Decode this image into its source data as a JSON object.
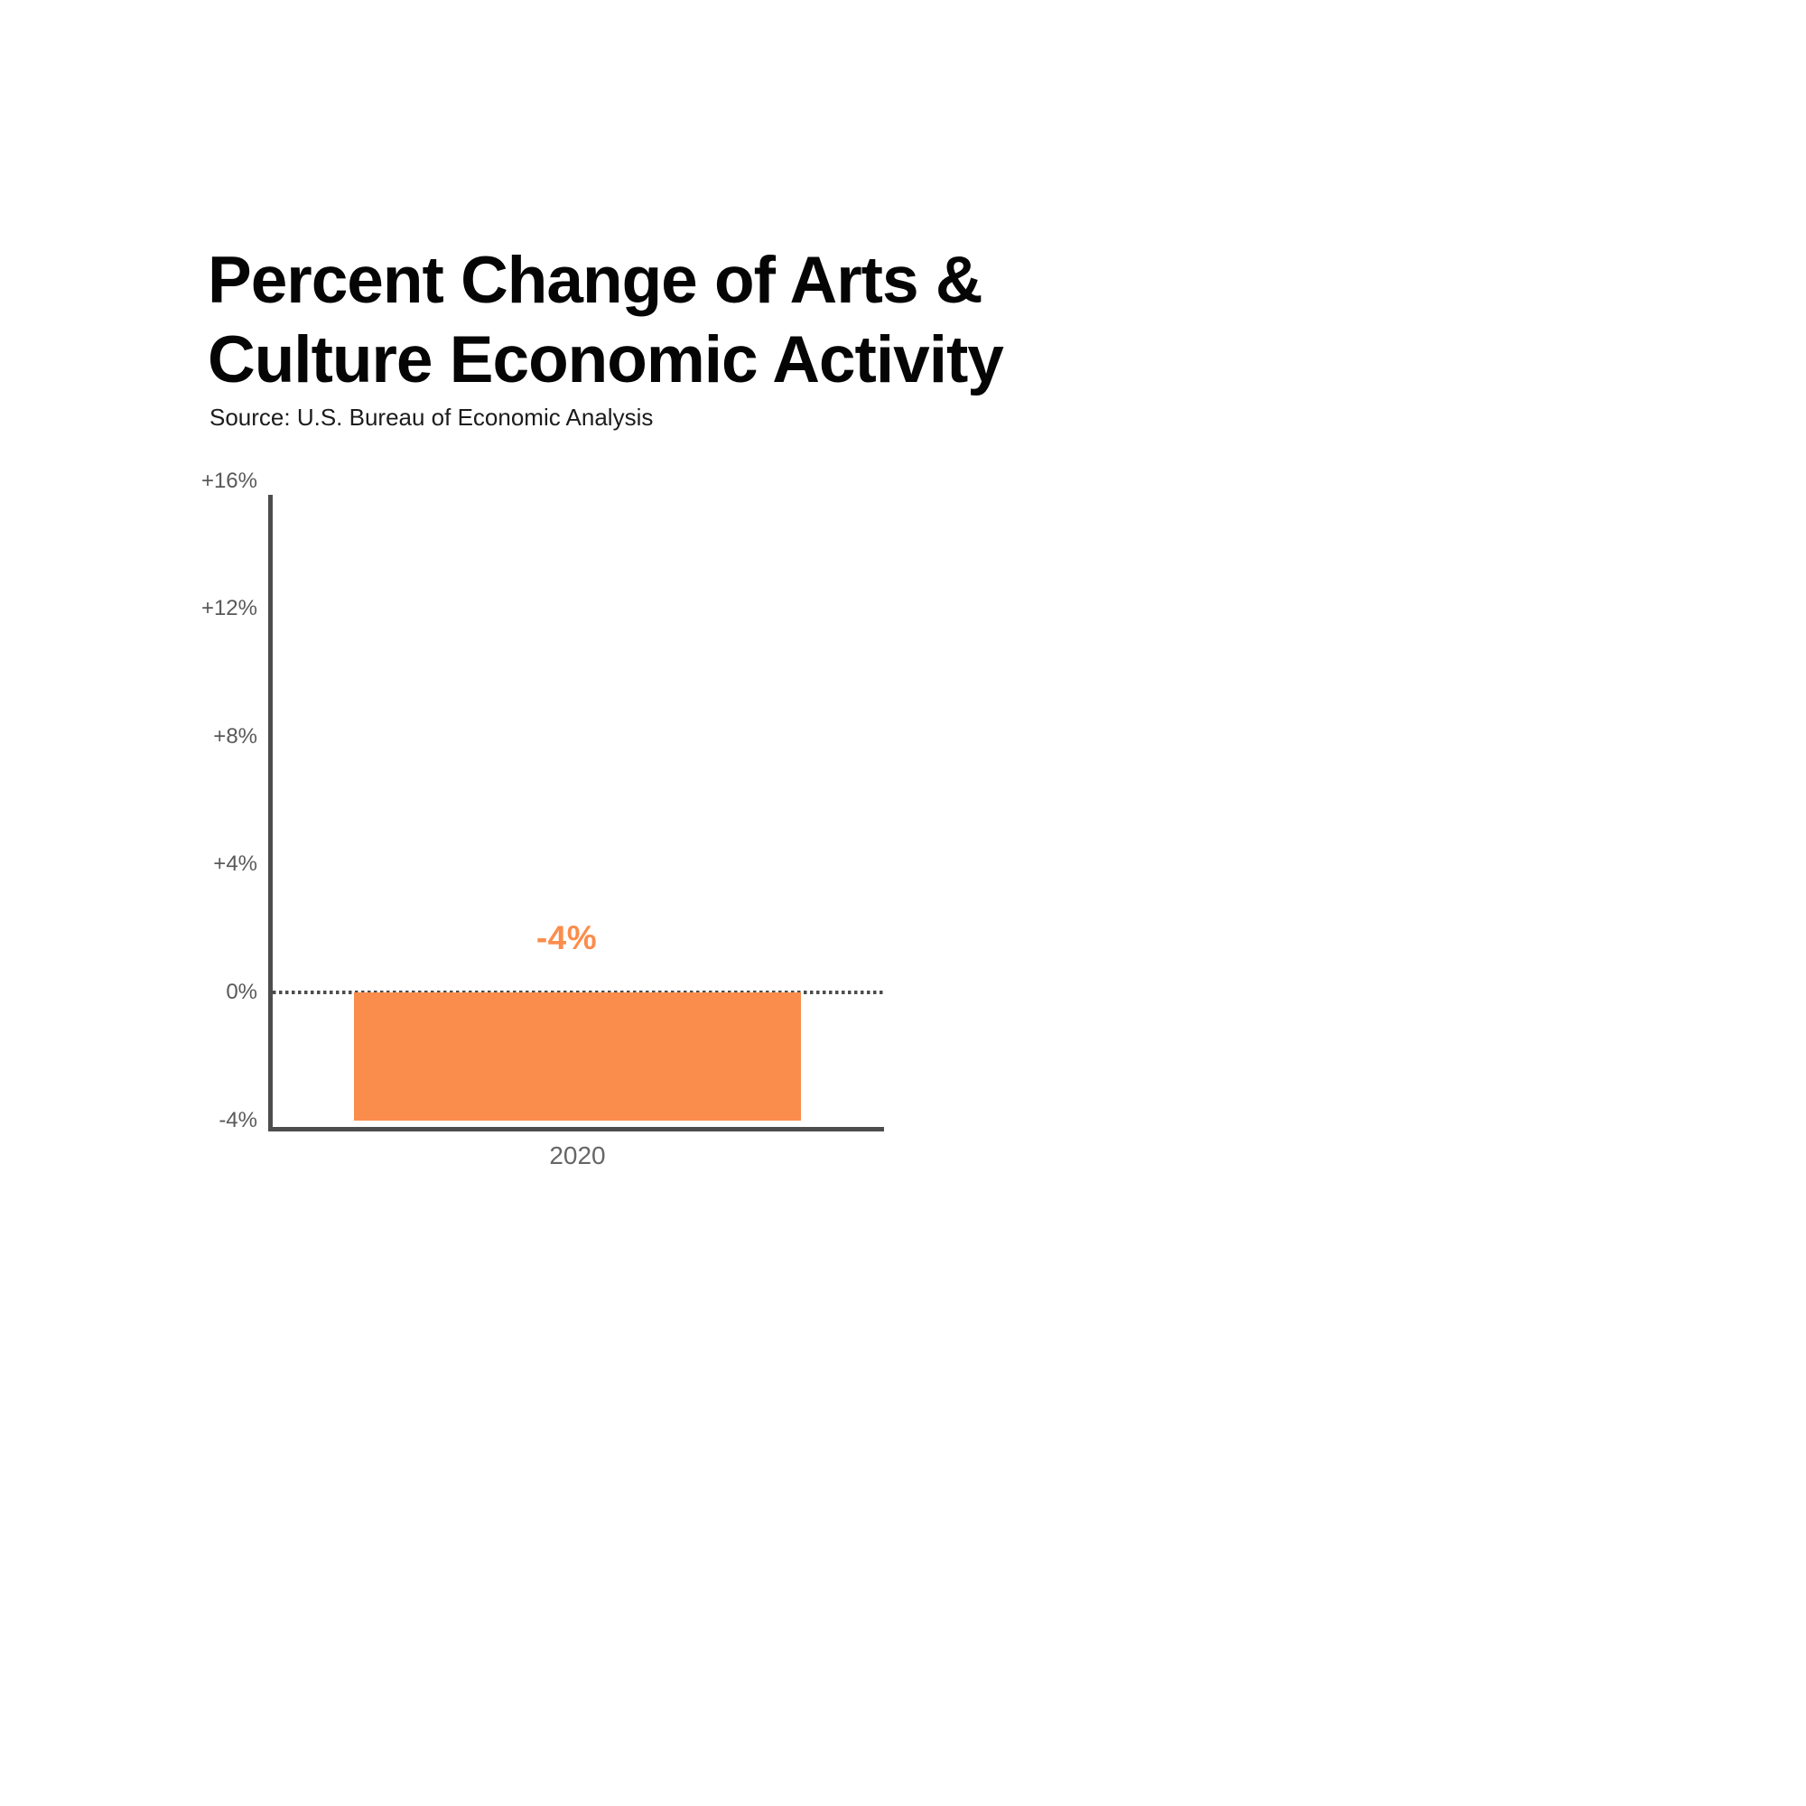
{
  "header": {
    "title_line1": "Percent Change of Arts &",
    "title_line2": "Culture Economic Activity",
    "source": "Source: U.S. Bureau of Economic Analysis"
  },
  "chart_data": {
    "type": "bar",
    "title": "Percent Change of Arts & Culture Economic Activity",
    "source": "U.S. Bureau of Economic Analysis",
    "categories": [
      "2020"
    ],
    "series": [
      {
        "name": "Percent change of arts & culture economic activity",
        "values": [
          -4
        ]
      }
    ],
    "values": [
      -4
    ],
    "data_labels": [
      "-4%"
    ],
    "yticks": [
      {
        "label": "+16%",
        "value": 16
      },
      {
        "label": "+12%",
        "value": 12
      },
      {
        "label": "+8%",
        "value": 8
      },
      {
        "label": "+4%",
        "value": 4
      },
      {
        "label": "0%",
        "value": 0
      },
      {
        "label": "-4%",
        "value": -4
      }
    ],
    "ylim": [
      -4.35,
      15.6
    ],
    "xlabel": "",
    "ylabel": "",
    "grid": false,
    "legend_position": "none",
    "zero_baseline_style": "dotted",
    "bar_color": "#fb8d4c",
    "label_color": "#fb8d4c",
    "axis_color": "#4d4d4d",
    "tick_color": "#595959",
    "xtick_color": "#666666"
  }
}
